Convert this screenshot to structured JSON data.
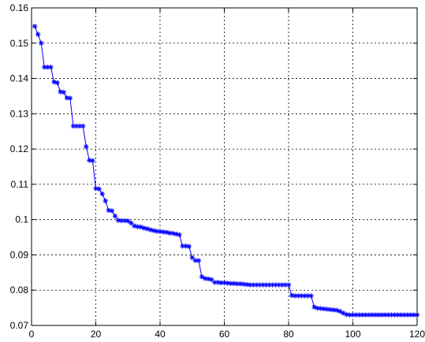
{
  "chart_data": {
    "type": "line",
    "title": "",
    "xlabel": "",
    "ylabel": "",
    "xlim": [
      0,
      120
    ],
    "ylim": [
      0.07,
      0.16
    ],
    "xticks": [
      0,
      20,
      40,
      60,
      80,
      100,
      120
    ],
    "xtick_labels": [
      "0",
      "20",
      "40",
      "60",
      "80",
      "100",
      "120"
    ],
    "yticks": [
      0.07,
      0.08,
      0.09,
      0.1,
      0.11,
      0.12,
      0.13,
      0.14,
      0.15,
      0.16
    ],
    "ytick_labels": [
      "0.07",
      "0.08",
      "0.09",
      "0.1",
      "0.11",
      "0.12",
      "0.13",
      "0.14",
      "0.15",
      "0.16"
    ],
    "grid": true,
    "marker": "asterisk",
    "colors": {
      "series": "#0000ff",
      "axes": "#000000",
      "grid": "#000000"
    },
    "series": [
      {
        "values": [
          [
            1,
            0.1548
          ],
          [
            2,
            0.1525
          ],
          [
            3,
            0.15
          ],
          [
            4,
            0.1432
          ],
          [
            5,
            0.1432
          ],
          [
            6,
            0.1432
          ],
          [
            7,
            0.139
          ],
          [
            8,
            0.1388
          ],
          [
            9,
            0.1362
          ],
          [
            10,
            0.1361
          ],
          [
            11,
            0.1345
          ],
          [
            12,
            0.1344
          ],
          [
            13,
            0.1265
          ],
          [
            14,
            0.1265
          ],
          [
            15,
            0.1265
          ],
          [
            16,
            0.1265
          ],
          [
            17,
            0.1207
          ],
          [
            18,
            0.1168
          ],
          [
            19,
            0.1167
          ],
          [
            20,
            0.1088
          ],
          [
            21,
            0.1087
          ],
          [
            22,
            0.1073
          ],
          [
            23,
            0.1053
          ],
          [
            24,
            0.1026
          ],
          [
            25,
            0.1025
          ],
          [
            26,
            0.101
          ],
          [
            27,
            0.0998
          ],
          [
            28,
            0.0997
          ],
          [
            29,
            0.0997
          ],
          [
            30,
            0.0996
          ],
          [
            31,
            0.099
          ],
          [
            32,
            0.0982
          ],
          [
            33,
            0.098
          ],
          [
            34,
            0.0979
          ],
          [
            35,
            0.0976
          ],
          [
            36,
            0.0974
          ],
          [
            37,
            0.0971
          ],
          [
            38,
            0.0969
          ],
          [
            39,
            0.0967
          ],
          [
            40,
            0.0966
          ],
          [
            41,
            0.0965
          ],
          [
            42,
            0.0964
          ],
          [
            43,
            0.0962
          ],
          [
            44,
            0.0961
          ],
          [
            45,
            0.0959
          ],
          [
            46,
            0.0957
          ],
          [
            47,
            0.0925
          ],
          [
            48,
            0.0925
          ],
          [
            49,
            0.0924
          ],
          [
            50,
            0.0892
          ],
          [
            51,
            0.0884
          ],
          [
            52,
            0.0884
          ],
          [
            53,
            0.0838
          ],
          [
            54,
            0.0833
          ],
          [
            55,
            0.0832
          ],
          [
            56,
            0.083
          ],
          [
            57,
            0.0822
          ],
          [
            58,
            0.0822
          ],
          [
            59,
            0.0821
          ],
          [
            60,
            0.0821
          ],
          [
            61,
            0.082
          ],
          [
            62,
            0.0819
          ],
          [
            63,
            0.0819
          ],
          [
            64,
            0.0818
          ],
          [
            65,
            0.0818
          ],
          [
            66,
            0.0817
          ],
          [
            67,
            0.0816
          ],
          [
            68,
            0.0815
          ],
          [
            69,
            0.0815
          ],
          [
            70,
            0.0815
          ],
          [
            71,
            0.0815
          ],
          [
            72,
            0.0815
          ],
          [
            73,
            0.0815
          ],
          [
            74,
            0.0815
          ],
          [
            75,
            0.0815
          ],
          [
            76,
            0.0815
          ],
          [
            77,
            0.0815
          ],
          [
            78,
            0.0815
          ],
          [
            79,
            0.0815
          ],
          [
            80,
            0.0815
          ],
          [
            81,
            0.0785
          ],
          [
            82,
            0.0784
          ],
          [
            83,
            0.0784
          ],
          [
            84,
            0.0784
          ],
          [
            85,
            0.0784
          ],
          [
            86,
            0.0784
          ],
          [
            87,
            0.0784
          ],
          [
            88,
            0.0752
          ],
          [
            89,
            0.0749
          ],
          [
            90,
            0.0748
          ],
          [
            91,
            0.0747
          ],
          [
            92,
            0.0746
          ],
          [
            93,
            0.0745
          ],
          [
            94,
            0.0744
          ],
          [
            95,
            0.0743
          ],
          [
            96,
            0.074
          ],
          [
            97,
            0.0735
          ],
          [
            98,
            0.0731
          ],
          [
            99,
            0.073
          ],
          [
            100,
            0.073
          ],
          [
            101,
            0.073
          ],
          [
            102,
            0.073
          ],
          [
            103,
            0.073
          ],
          [
            104,
            0.073
          ],
          [
            105,
            0.073
          ],
          [
            106,
            0.073
          ],
          [
            107,
            0.073
          ],
          [
            108,
            0.073
          ],
          [
            109,
            0.073
          ],
          [
            110,
            0.073
          ],
          [
            111,
            0.073
          ],
          [
            112,
            0.073
          ],
          [
            113,
            0.073
          ],
          [
            114,
            0.073
          ],
          [
            115,
            0.073
          ],
          [
            116,
            0.073
          ],
          [
            117,
            0.073
          ],
          [
            118,
            0.073
          ],
          [
            119,
            0.073
          ],
          [
            120,
            0.073
          ]
        ]
      }
    ]
  }
}
